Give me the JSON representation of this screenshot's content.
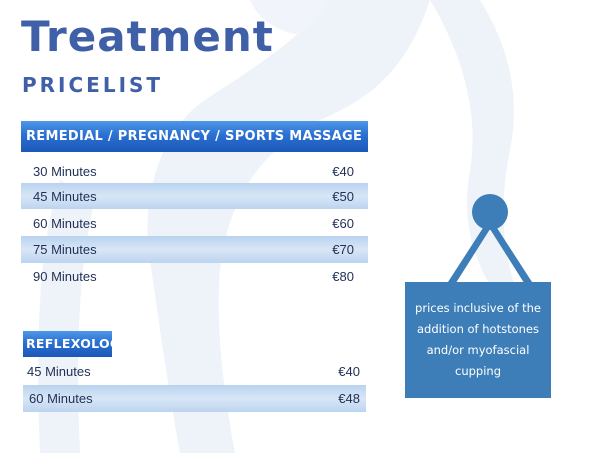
{
  "header": {
    "title": "Treatment",
    "subtitle": "PRICELIST"
  },
  "massage": {
    "heading": "REMEDIAL / PREGNANCY / SPORTS MASSAGE",
    "items": [
      {
        "duration": "30 Minutes",
        "price": "€40"
      },
      {
        "duration": "45 Minutes",
        "price": "€50"
      },
      {
        "duration": "60 Minutes",
        "price": "€60"
      },
      {
        "duration": "75 Minutes",
        "price": "€70"
      },
      {
        "duration": "90 Minutes",
        "price": "€80"
      }
    ]
  },
  "reflexology": {
    "heading": "REFLEXOLOGY",
    "items": [
      {
        "duration": "45 Minutes",
        "price": "€40"
      },
      {
        "duration": "60 Minutes",
        "price": "€48"
      }
    ]
  },
  "sign": {
    "text": "prices inclusive of the addition of hotstones and/or myofascial cupping"
  },
  "colors": {
    "title": "#3f5fa6",
    "band": "#2a70d2",
    "row_shade": "#c9dcf2",
    "sign": "#3d7eb8"
  },
  "icons": {
    "background": "body-silhouette",
    "sign_pin": "hanging-sign-pin-icon"
  }
}
